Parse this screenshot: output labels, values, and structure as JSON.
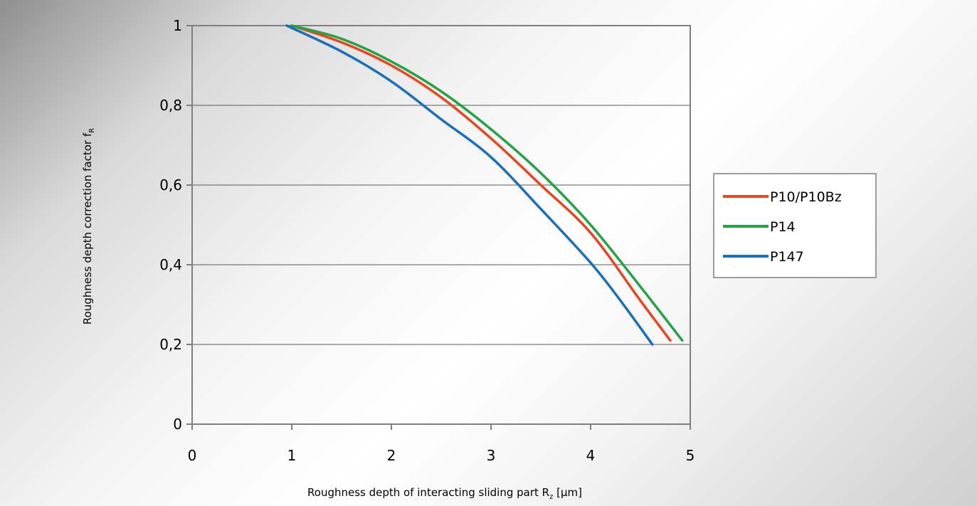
{
  "chart_data": {
    "type": "line",
    "title": "",
    "xlabel": "Roughness depth of interacting sliding part R",
    "xlabel_sub": "z",
    "xlabel_unit": " [µm]",
    "ylabel": "Roughness depth correction factor f",
    "ylabel_sub": "R",
    "xlim": [
      0,
      5
    ],
    "ylim": [
      0,
      1
    ],
    "x_ticks": [
      0,
      1,
      2,
      3,
      4,
      5
    ],
    "y_ticks": [
      0,
      0.2,
      0.4,
      0.6,
      0.8,
      1
    ],
    "x_tick_labels": [
      "0",
      "1",
      "2",
      "3",
      "4",
      "5"
    ],
    "y_tick_labels": [
      "0",
      "0,2",
      "0,4",
      "0,6",
      "0,8",
      "1"
    ],
    "grid": "horizontal",
    "legend_position": "right",
    "series": [
      {
        "name": "P10/P10Bz",
        "color": "#e8461e",
        "points": [
          [
            1.0,
            1.0
          ],
          [
            1.5,
            0.958
          ],
          [
            2.0,
            0.9
          ],
          [
            2.5,
            0.82
          ],
          [
            3.0,
            0.717
          ],
          [
            3.5,
            0.6
          ],
          [
            4.0,
            0.48
          ],
          [
            4.5,
            0.31
          ],
          [
            4.8,
            0.21
          ]
        ]
      },
      {
        "name": "P14",
        "color": "#22a345",
        "points": [
          [
            1.0,
            1.0
          ],
          [
            1.5,
            0.967
          ],
          [
            2.0,
            0.91
          ],
          [
            2.5,
            0.835
          ],
          [
            3.0,
            0.74
          ],
          [
            3.5,
            0.63
          ],
          [
            4.0,
            0.5
          ],
          [
            4.5,
            0.345
          ],
          [
            4.92,
            0.21
          ]
        ]
      },
      {
        "name": "P147",
        "color": "#1a6fba",
        "points": [
          [
            0.95,
            1.0
          ],
          [
            1.5,
            0.935
          ],
          [
            2.0,
            0.86
          ],
          [
            2.5,
            0.765
          ],
          [
            3.0,
            0.67
          ],
          [
            3.5,
            0.54
          ],
          [
            4.0,
            0.405
          ],
          [
            4.3,
            0.31
          ],
          [
            4.62,
            0.2
          ]
        ]
      }
    ]
  }
}
